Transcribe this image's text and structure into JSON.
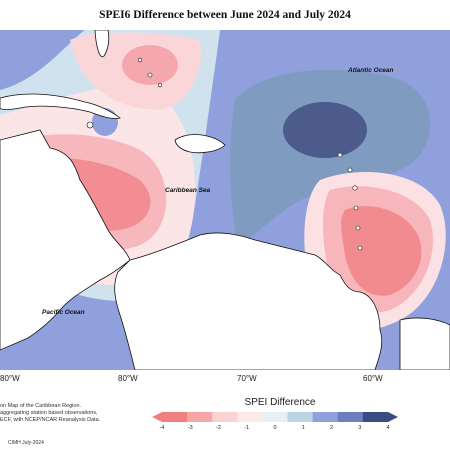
{
  "title": "SPEI6 Difference between June 2024 and July 2024",
  "map_labels": {
    "atlantic": "Atlantic Ocean",
    "caribbean": "Caribbean Sea",
    "pacific": "Pacific Ocean"
  },
  "longitudes": [
    "80°W",
    "80°W",
    "70°W",
    "60°W"
  ],
  "description_lines": [
    "on Map of the Caribbean Region.",
    "aggregating station based observations,",
    "ECF, with NCEP/NCAR Reanalysis Data."
  ],
  "credit": "CIMH July-2024",
  "legend": {
    "title": "SPEI Difference",
    "ticks": [
      "-4",
      "-3",
      "-2",
      "-1",
      "0",
      "1",
      "2",
      "3",
      "4"
    ],
    "colors": [
      "#f08080",
      "#f5a7a7",
      "#f9d2d2",
      "#fce9e9",
      "#e6f0f6",
      "#b9d5e3",
      "#8fa0dc",
      "#6b7fc0",
      "#3b4a80"
    ]
  }
}
